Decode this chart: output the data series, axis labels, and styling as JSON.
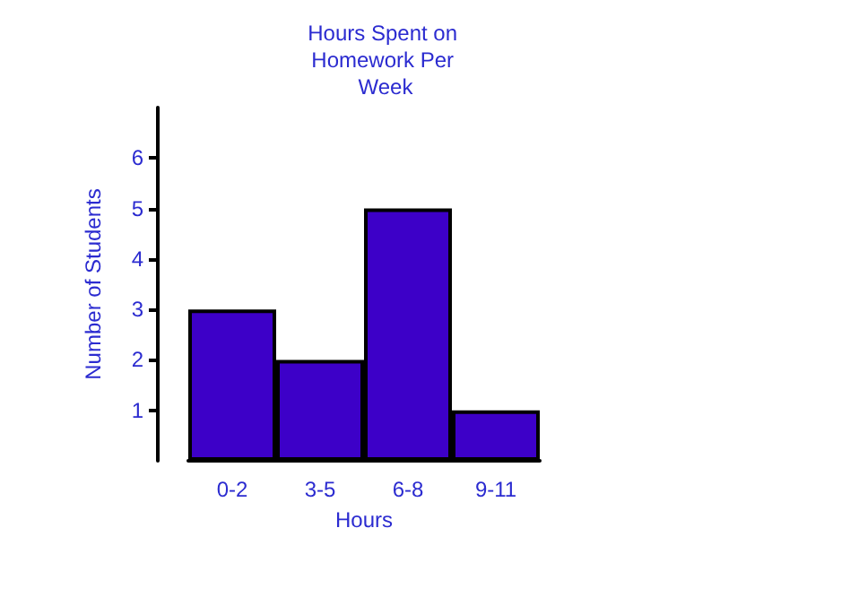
{
  "chart_data": {
    "type": "bar",
    "title": "Hours Spent on Homework Per Week",
    "xlabel": "Hours",
    "ylabel": "Number of Students",
    "categories": [
      "0-2",
      "3-5",
      "6-8",
      "9-11"
    ],
    "values": [
      3,
      2,
      5,
      1
    ],
    "color": "#3d00c8",
    "ylim": [
      0,
      7
    ],
    "yticks": [
      1,
      2,
      3,
      4,
      5,
      6
    ],
    "grid": false
  }
}
